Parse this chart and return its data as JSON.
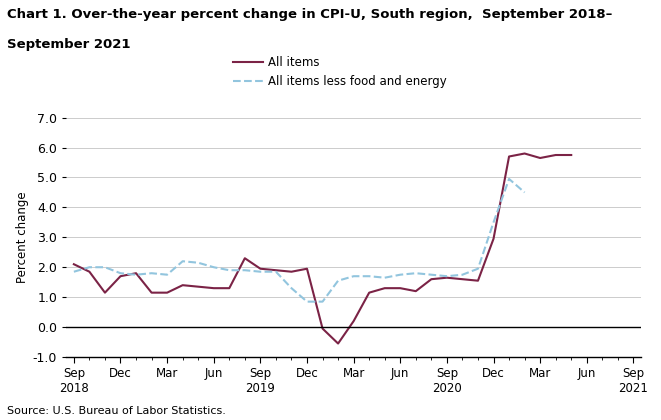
{
  "title_line1": "Chart 1. Over-the-year percent change in CPI-U, South region,  September 2018–",
  "title_line2": "September 2021",
  "ylabel": "Percent change",
  "source": "Source: U.S. Bureau of Labor Statistics.",
  "ylim": [
    -1.0,
    7.0
  ],
  "yticks": [
    -1.0,
    0.0,
    1.0,
    2.0,
    3.0,
    4.0,
    5.0,
    6.0,
    7.0
  ],
  "all_items": {
    "label": "All items",
    "color": "#7b2346",
    "values": [
      2.1,
      1.85,
      1.15,
      1.7,
      1.8,
      1.15,
      1.15,
      1.4,
      1.35,
      1.3,
      1.3,
      2.3,
      1.95,
      1.9,
      1.85,
      1.95,
      -0.05,
      -0.55,
      0.2,
      1.15,
      1.3,
      1.3,
      1.2,
      1.6,
      1.65,
      1.6,
      1.55,
      2.95,
      5.7,
      5.8,
      5.65,
      5.75,
      5.75
    ]
  },
  "core_items": {
    "label": "All items less food and energy",
    "color": "#92c5de",
    "values": [
      1.85,
      2.0,
      2.0,
      1.8,
      1.75,
      1.8,
      1.75,
      2.2,
      2.15,
      2.0,
      1.9,
      1.9,
      1.85,
      1.85,
      1.3,
      0.85,
      0.85,
      1.55,
      1.7,
      1.7,
      1.65,
      1.75,
      1.8,
      1.75,
      1.7,
      1.75,
      1.95,
      3.5,
      4.95,
      4.5,
      null,
      null,
      null
    ]
  },
  "quarterly_x": [
    0,
    3,
    6,
    9,
    12,
    15,
    18,
    21,
    24,
    27,
    30,
    33,
    36
  ],
  "quarterly_labels": [
    "Sep\n2018",
    "Dec",
    "Mar",
    "Jun",
    "Sep\n2019",
    "Dec",
    "Mar",
    "Jun",
    "Sep\n2020",
    "Dec",
    "Mar",
    "Jun",
    "Sep\n2021"
  ]
}
